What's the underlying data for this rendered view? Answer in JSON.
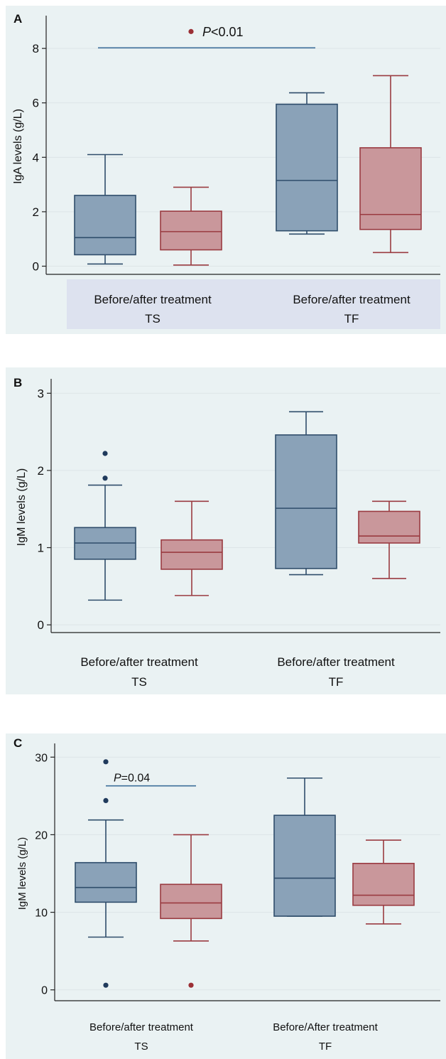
{
  "colors": {
    "panel_bg": "#eaf2f3",
    "before_fill": "#8aa2b8",
    "before_stroke": "#2f4d6b",
    "after_fill": "#c9979b",
    "after_stroke": "#9a3b41",
    "outlier_before": "#1f3a5c",
    "outlier_after": "#9b2f35",
    "bracket": "#3d6f9a",
    "label_band": "#dde2ef"
  },
  "chart_data": [
    {
      "panel_letter": "A",
      "type": "box",
      "ylabel": "IgA levels (g/L)",
      "ylim": [
        -0.3,
        9.1
      ],
      "yticks": [
        "0",
        "2",
        "4",
        "6",
        "8"
      ],
      "grid": true,
      "groups": [
        {
          "line1": "Before/after treatment",
          "line2": "TS"
        },
        {
          "line1": "Before/after treatment",
          "line2": "TF"
        }
      ],
      "series": [
        {
          "name": "",
          "group": 0,
          "role": "before",
          "whisker_low": 0.08,
          "q1": 0.42,
          "median": 1.05,
          "q3": 2.6,
          "whisker_high": 4.1,
          "outliers": []
        },
        {
          "name": "",
          "group": 0,
          "role": "after",
          "whisker_low": 0.04,
          "q1": 0.6,
          "median": 1.27,
          "q3": 2.02,
          "whisker_high": 2.9,
          "outliers": [
            8.62
          ]
        },
        {
          "name": "",
          "group": 1,
          "role": "before",
          "whisker_low": 1.18,
          "q1": 1.3,
          "median": 3.15,
          "q3": 5.95,
          "whisker_high": 6.37,
          "outliers": []
        },
        {
          "name": "",
          "group": 1,
          "role": "after",
          "whisker_low": 0.5,
          "q1": 1.35,
          "median": 1.9,
          "q3": 4.35,
          "whisker_high": 7.0,
          "outliers": []
        }
      ],
      "annotations": [
        {
          "prefix": "P",
          "text": "<0.01",
          "y": 8.6,
          "bracket_y": 8.02,
          "from_box": 0,
          "to_box": 2
        }
      ]
    },
    {
      "panel_letter": "B",
      "type": "box",
      "ylabel": "IgM levels (g/L)",
      "ylim": [
        -0.1,
        3.15
      ],
      "yticks": [
        "0",
        "1",
        "2",
        "3"
      ],
      "grid": true,
      "groups": [
        {
          "line1": "Before/after treatment",
          "line2": "TS"
        },
        {
          "line1": "Before/after treatment",
          "line2": "TF"
        }
      ],
      "series": [
        {
          "name": "",
          "group": 0,
          "role": "before",
          "whisker_low": 0.32,
          "q1": 0.85,
          "median": 1.06,
          "q3": 1.26,
          "whisker_high": 1.81,
          "outliers": [
            1.9,
            2.22
          ]
        },
        {
          "name": "",
          "group": 0,
          "role": "after",
          "whisker_low": 0.38,
          "q1": 0.72,
          "median": 0.94,
          "q3": 1.1,
          "whisker_high": 1.6,
          "outliers": []
        },
        {
          "name": "",
          "group": 1,
          "role": "before",
          "whisker_low": 0.65,
          "q1": 0.73,
          "median": 1.51,
          "q3": 2.46,
          "whisker_high": 2.76,
          "outliers": []
        },
        {
          "name": "",
          "group": 1,
          "role": "after",
          "whisker_low": 0.6,
          "q1": 1.06,
          "median": 1.15,
          "q3": 1.47,
          "whisker_high": 1.6,
          "outliers": []
        }
      ],
      "annotations": []
    },
    {
      "panel_letter": "C",
      "type": "box",
      "ylabel": "IgM levels (g/L)",
      "ylim": [
        -1.4,
        31.4
      ],
      "yticks": [
        "0",
        "10",
        "20",
        "30"
      ],
      "grid": true,
      "groups": [
        {
          "line1": "Before/after treatment",
          "line2": "TS"
        },
        {
          "line1": "Before/After treatment",
          "line2": "TF"
        }
      ],
      "series": [
        {
          "name": "",
          "group": 0,
          "role": "before",
          "whisker_low": 6.8,
          "q1": 11.3,
          "median": 13.2,
          "q3": 16.4,
          "whisker_high": 21.9,
          "outliers": [
            0.6,
            24.4,
            29.4
          ]
        },
        {
          "name": "",
          "group": 0,
          "role": "after",
          "whisker_low": 6.3,
          "q1": 9.2,
          "median": 11.2,
          "q3": 13.6,
          "whisker_high": 20.0,
          "outliers": [
            0.6
          ]
        },
        {
          "name": "",
          "group": 1,
          "role": "before",
          "whisker_low": 9.5,
          "q1": 9.5,
          "median": 14.4,
          "q3": 22.5,
          "whisker_high": 27.3,
          "outliers": []
        },
        {
          "name": "",
          "group": 1,
          "role": "after",
          "whisker_low": 8.5,
          "q1": 10.9,
          "median": 12.2,
          "q3": 16.3,
          "whisker_high": 19.3,
          "outliers": []
        }
      ],
      "annotations": [
        {
          "prefix": "P",
          "text": "=0.04",
          "y": 27.4,
          "bracket_y": 26.3,
          "from_box": 0,
          "to_box": 1
        }
      ]
    }
  ]
}
